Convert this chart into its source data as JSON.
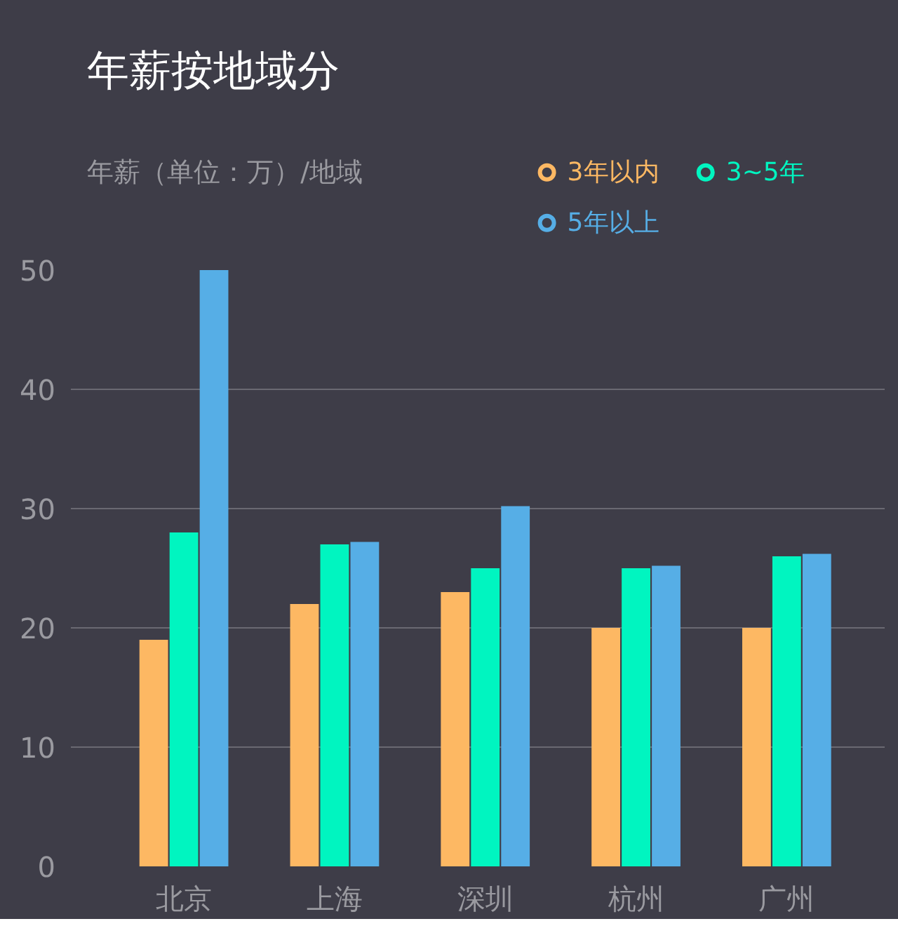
{
  "chart_data": {
    "type": "bar",
    "title": "年薪按地域分",
    "ylabel": "年薪（单位：万）/地域",
    "categories": [
      "北京",
      "上海",
      "深圳",
      "杭州",
      "广州"
    ],
    "series": [
      {
        "name": "3年以内",
        "color": "#fdb863",
        "values": [
          19,
          22,
          23,
          20,
          20
        ]
      },
      {
        "name": "3~5年",
        "color": "#00f5c0",
        "values": [
          28,
          27,
          25,
          25,
          26
        ]
      },
      {
        "name": "5年以上",
        "color": "#56aee6",
        "values": [
          50,
          27.2,
          30.2,
          25.2,
          26.2
        ]
      }
    ],
    "ylim": [
      0,
      50
    ],
    "yticks": [
      0,
      10,
      20,
      30,
      40,
      50
    ],
    "grid": "y",
    "legend": "top right",
    "marker": "circle"
  }
}
